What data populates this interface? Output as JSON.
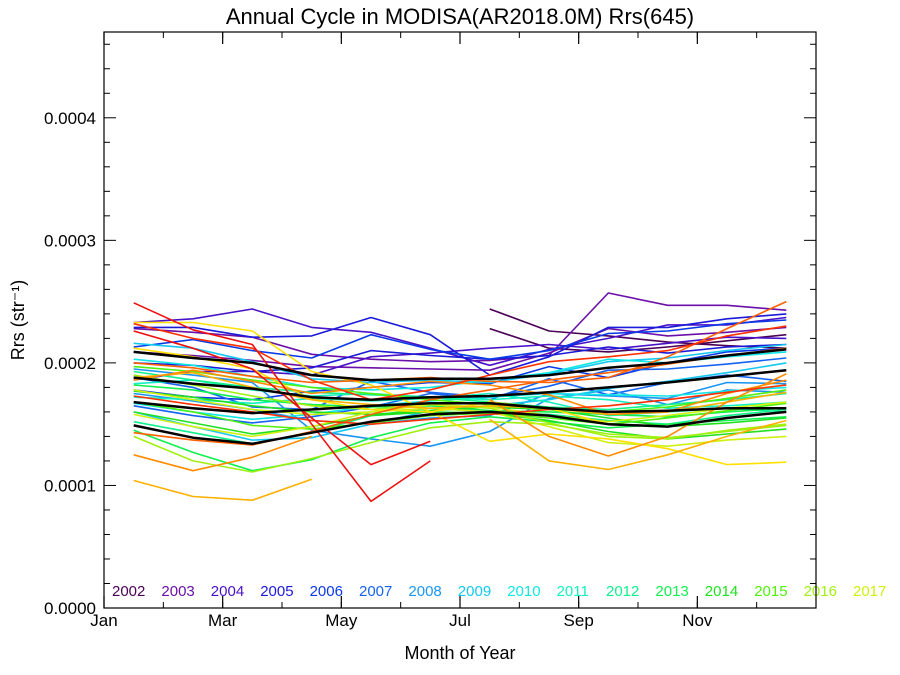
{
  "chart_data": {
    "type": "line",
    "title": "Annual Cycle in MODISA(AR2018.0M) Rrs(645)",
    "xlabel": "Month of Year",
    "ylabel": "Rrs (str⁻¹)",
    "xlim": [
      1,
      13
    ],
    "ylim": [
      0.0,
      0.00047
    ],
    "x_ticks": [
      {
        "value": 1,
        "label": "Jan"
      },
      {
        "value": 3,
        "label": "Mar"
      },
      {
        "value": 5,
        "label": "May"
      },
      {
        "value": 7,
        "label": "Jul"
      },
      {
        "value": 9,
        "label": "Sep"
      },
      {
        "value": 11,
        "label": "Nov"
      }
    ],
    "y_ticks": [
      {
        "value": 0.0,
        "label": "0.0000"
      },
      {
        "value": 0.0001,
        "label": "0.0001"
      },
      {
        "value": 0.0002,
        "label": "0.0002"
      },
      {
        "value": 0.0003,
        "label": "0.0003"
      },
      {
        "value": 0.0004,
        "label": "0.0004"
      }
    ],
    "months": [
      1.5,
      2.5,
      3.5,
      4.5,
      5.5,
      6.5,
      7.5,
      8.5,
      9.5,
      10.5,
      11.5,
      12.5
    ],
    "year_labels": [
      {
        "year": "2002",
        "color": "#4a0055"
      },
      {
        "year": "2003",
        "color": "#6a10a8"
      },
      {
        "year": "2004",
        "color": "#4a12c8"
      },
      {
        "year": "2005",
        "color": "#1a1ad8"
      },
      {
        "year": "2006",
        "color": "#0a3ae8"
      },
      {
        "year": "2007",
        "color": "#1464f0"
      },
      {
        "year": "2008",
        "color": "#1a96f0"
      },
      {
        "year": "2009",
        "color": "#14c8f0"
      },
      {
        "year": "2010",
        "color": "#10e6e6"
      },
      {
        "year": "2011",
        "color": "#14f0c0"
      },
      {
        "year": "2012",
        "color": "#10f08c"
      },
      {
        "year": "2013",
        "color": "#10f050"
      },
      {
        "year": "2014",
        "color": "#20e020"
      },
      {
        "year": "2015",
        "color": "#50f010"
      },
      {
        "year": "2016",
        "color": "#a0f010"
      },
      {
        "year": "2017",
        "color": "#d0f010"
      }
    ],
    "series": [
      {
        "color": "#4a0055",
        "values": [
          null,
          null,
          null,
          null,
          null,
          null,
          0.000244,
          0.000226,
          0.000222,
          0.000217,
          0.000214,
          0.000212
        ]
      },
      {
        "color": "#4a0055",
        "values": [
          null,
          null,
          null,
          null,
          null,
          null,
          0.000228,
          0.000212,
          0.000209,
          0.000213,
          0.000218,
          0.000223
        ]
      },
      {
        "color": "#6a10a8",
        "values": [
          0.000228,
          0.000225,
          0.000221,
          0.000207,
          0.000203,
          0.000201,
          0.000202,
          0.000206,
          0.000257,
          0.000247,
          0.000247,
          0.000243
        ]
      },
      {
        "color": "#6a10a8",
        "values": [
          0.000209,
          0.000206,
          0.000202,
          0.000197,
          0.000196,
          0.000195,
          0.000194,
          0.000208,
          0.000228,
          0.000222,
          0.000225,
          0.000229
        ]
      },
      {
        "color": "#4a12c8",
        "values": [
          0.000233,
          0.000236,
          0.000244,
          0.000229,
          0.000225,
          0.000212,
          0.000198,
          0.000211,
          0.00022,
          0.000231,
          0.000231,
          0.000237
        ]
      },
      {
        "color": "#4a12c8",
        "values": [
          0.000186,
          0.000193,
          0.000193,
          0.00019,
          0.000205,
          0.000208,
          0.000212,
          0.000215,
          0.000211,
          0.000216,
          0.000221,
          0.00022
        ]
      },
      {
        "color": "#1a1ad8",
        "values": [
          0.000229,
          0.000229,
          0.000221,
          0.000222,
          0.000237,
          0.000223,
          0.00019,
          0.000205,
          0.000229,
          0.000229,
          0.000236,
          0.00024
        ]
      },
      {
        "color": "#1a1ad8",
        "values": [
          0.0002,
          0.000198,
          0.000193,
          0.000196,
          0.00021,
          0.000206,
          0.000203,
          0.000206,
          0.000213,
          0.000208,
          0.000213,
          0.000215
        ]
      },
      {
        "color": "#0a3ae8",
        "values": [
          0.000213,
          0.000219,
          0.00021,
          0.000204,
          0.000223,
          0.000211,
          0.000203,
          0.00021,
          0.000224,
          0.000226,
          0.000232,
          0.000235
        ]
      },
      {
        "color": "#0a3ae8",
        "values": [
          0.000178,
          0.000172,
          0.00017,
          0.000177,
          0.00018,
          0.000184,
          0.000183,
          0.000197,
          0.000188,
          0.0002,
          0.000209,
          0.000212
        ]
      },
      {
        "color": "#1464f0",
        "values": [
          0.000188,
          0.00018,
          0.000164,
          0.000162,
          0.000185,
          0.000176,
          0.000172,
          0.000181,
          0.000194,
          0.000195,
          0.000199,
          0.000204
        ]
      },
      {
        "color": "#1464f0",
        "values": [
          0.000165,
          0.000157,
          0.000151,
          0.000156,
          0.000164,
          0.000175,
          0.00017,
          0.000187,
          0.000174,
          0.000184,
          0.00019,
          0.000185
        ]
      },
      {
        "color": "#1a96f0",
        "values": [
          0.000175,
          0.000169,
          0.000162,
          0.000153,
          0.00015,
          0.000155,
          0.000157,
          0.000175,
          0.000173,
          0.000171,
          0.000184,
          0.000183
        ]
      },
      {
        "color": "#1a96f0",
        "values": [
          0.000195,
          0.00019,
          0.000184,
          0.000145,
          0.000138,
          0.000132,
          0.000144,
          0.000171,
          0.000178,
          0.000166,
          0.000178,
          0.000176
        ]
      },
      {
        "color": "#14c8f0",
        "values": [
          0.000216,
          0.000212,
          0.000201,
          0.000187,
          0.000184,
          0.000186,
          0.000184,
          0.000191,
          0.000201,
          0.000204,
          0.00021,
          0.000215
        ]
      },
      {
        "color": "#14c8f0",
        "values": [
          0.00016,
          0.000148,
          0.000137,
          0.000139,
          0.00015,
          0.000161,
          0.000165,
          0.00017,
          0.000179,
          0.000185,
          0.000192,
          0.0002
        ]
      },
      {
        "color": "#10e6e6",
        "values": [
          0.000203,
          0.000198,
          0.000189,
          0.00018,
          0.000178,
          0.00018,
          0.000186,
          0.000192,
          0.000203,
          0.0002,
          0.000205,
          0.000209
        ]
      },
      {
        "color": "#10e6e6",
        "values": [
          0.000167,
          0.00016,
          0.000154,
          0.000158,
          0.000165,
          0.000169,
          0.000172,
          0.000175,
          0.000174,
          0.000173,
          0.000177,
          0.00018
        ]
      },
      {
        "color": "#14f0c0",
        "values": [
          0.000183,
          0.000186,
          0.000178,
          0.000173,
          0.000175,
          0.000172,
          0.00017,
          0.000173,
          0.00017,
          0.000163,
          0.000165,
          0.000168
        ]
      },
      {
        "color": "#14f0c0",
        "values": [
          0.000172,
          0.00017,
          0.000167,
          0.000171,
          0.000169,
          0.000171,
          0.000175,
          0.000168,
          0.000157,
          0.00016,
          0.000163,
          0.00016
        ]
      },
      {
        "color": "#10f08c",
        "values": [
          0.000193,
          0.000186,
          0.00018,
          0.000176,
          0.000174,
          0.000172,
          0.000168,
          0.000164,
          0.000162,
          0.000166,
          0.00017,
          0.000175
        ]
      },
      {
        "color": "#10f08c",
        "values": [
          0.000152,
          0.000143,
          0.000134,
          0.000143,
          0.000157,
          0.000163,
          0.00016,
          0.000158,
          0.000153,
          0.00015,
          0.000157,
          0.000162
        ]
      },
      {
        "color": "#10f050",
        "values": [
          0.000182,
          0.000178,
          0.00017,
          0.000166,
          0.000164,
          0.000165,
          0.000161,
          0.00016,
          0.000158,
          0.000156,
          0.00016,
          0.000163
        ]
      },
      {
        "color": "#10f050",
        "values": [
          0.000145,
          0.000127,
          0.000112,
          0.000121,
          0.000139,
          0.000151,
          0.000156,
          0.000152,
          0.000147,
          0.00015,
          0.000153,
          0.000156
        ]
      },
      {
        "color": "#20e020",
        "values": [
          0.000177,
          0.000172,
          0.000165,
          0.00016,
          0.000158,
          0.000161,
          0.000164,
          0.000162,
          0.000155,
          0.000148,
          0.000151,
          0.000155
        ]
      },
      {
        "color": "#20e020",
        "values": [
          0.00016,
          0.000151,
          0.000142,
          0.000148,
          0.000157,
          0.00016,
          0.000159,
          0.000153,
          0.000144,
          0.000138,
          0.000142,
          0.000146
        ]
      },
      {
        "color": "#50f010",
        "values": [
          0.000197,
          0.000193,
          0.000186,
          0.00018,
          0.000175,
          0.00017,
          0.000166,
          0.000162,
          0.00016,
          0.000164,
          0.000171,
          0.000178
        ]
      },
      {
        "color": "#50f010",
        "values": [
          0.000168,
          0.00016,
          0.000149,
          0.000146,
          0.000151,
          0.000157,
          0.000159,
          0.000155,
          0.00015,
          0.000155,
          0.000161,
          0.000167
        ]
      },
      {
        "color": "#a0f010",
        "values": [
          0.00019,
          0.000182,
          0.000173,
          0.000165,
          0.000162,
          0.000166,
          0.000163,
          0.000151,
          0.00014,
          0.000138,
          0.000145,
          0.00015
        ]
      },
      {
        "color": "#a0f010",
        "values": [
          0.00014,
          0.00012,
          0.000111,
          0.000122,
          0.000135,
          0.000147,
          0.000152,
          0.00015,
          0.000142,
          0.000139,
          0.000144,
          0.000149
        ]
      },
      {
        "color": "#d0f010",
        "values": [
          0.000178,
          0.00017,
          0.000162,
          0.000158,
          0.00016,
          0.000163,
          0.00016,
          0.000148,
          0.000135,
          0.000132,
          0.000137,
          0.00014
        ]
      },
      {
        "color": "#d0f010",
        "values": [
          0.000158,
          0.000148,
          0.00014,
          0.000148,
          0.00016,
          0.000166,
          0.000164,
          0.000157,
          0.000152,
          0.000157,
          0.000163,
          0.000168
        ]
      },
      {
        "color": "#ffe000",
        "values": [
          0.000233,
          0.000233,
          0.000226,
          0.000193,
          0.000182,
          0.00016,
          0.000136,
          0.000142,
          0.000138,
          0.00013,
          0.000117,
          0.000119
        ]
      },
      {
        "color": "#ffe000",
        "values": [
          0.000212,
          0.000205,
          0.000195,
          0.00017,
          0.000162,
          0.00016,
          0.000168,
          0.000163,
          0.00015,
          0.000148,
          0.000155,
          0.00016
        ]
      },
      {
        "color": "#ffb000",
        "values": [
          0.000104,
          9.1e-05,
          8.8e-05,
          0.000105,
          null,
          null,
          0.000154,
          0.00012,
          0.000113,
          0.000125,
          0.00014,
          0.000153
        ]
      },
      {
        "color": "#ffb000",
        "values": [
          0.000188,
          0.000192,
          0.00018,
          0.00017,
          0.000166,
          0.000163,
          0.000165,
          0.000163,
          0.000158,
          0.00016,
          0.000168,
          0.000176
        ]
      },
      {
        "color": "#ff8c00",
        "values": [
          0.000186,
          0.000194,
          0.000185,
          0.000175,
          0.00018,
          0.000185,
          0.000182,
          0.000174,
          0.000158,
          0.00016,
          0.000175,
          0.000186
        ]
      },
      {
        "color": "#ff8c00",
        "values": [
          0.000125,
          0.000112,
          0.000123,
          0.00014,
          null,
          null,
          0.00017,
          0.00014,
          0.000124,
          0.00014,
          0.000168,
          0.000191
        ]
      },
      {
        "color": "#ff6000",
        "values": [
          0.0002,
          0.000196,
          0.000189,
          0.000184,
          0.000186,
          0.000188,
          0.000185,
          0.000184,
          0.000188,
          0.000205,
          0.000228,
          0.00025
        ]
      },
      {
        "color": "#ff6000",
        "values": [
          0.000143,
          0.000137,
          0.000133,
          0.000144,
          0.000158,
          0.00017,
          0.000178,
          0.000186,
          0.000192,
          0.000199,
          0.000206,
          0.000212
        ]
      },
      {
        "color": "#ff3000",
        "values": [
          0.000232,
          0.00022,
          0.000212,
          0.000186,
          0.00017,
          0.000178,
          0.00019,
          0.000201,
          0.000205,
          0.00021,
          0.000222,
          0.00023
        ]
      },
      {
        "color": "#ff3000",
        "values": [
          0.000173,
          0.000166,
          0.00016,
          0.000153,
          0.00015,
          0.000154,
          0.000158,
          0.000162,
          0.000165,
          0.00017,
          0.000176,
          0.000182
        ]
      },
      {
        "color": "#ee1010",
        "values": [
          0.000249,
          0.000227,
          0.000215,
          0.00015,
          8.7e-05,
          0.00012,
          null,
          null,
          null,
          null,
          null,
          null
        ]
      },
      {
        "color": "#ee1010",
        "values": [
          0.000226,
          0.000212,
          0.000195,
          0.000155,
          0.000117,
          0.000136,
          null,
          null,
          null,
          null,
          null,
          null
        ]
      },
      {
        "color": "#000000",
        "width": 2.5,
        "values": [
          0.000209,
          0.000204,
          0.0002,
          0.00019,
          0.000186,
          0.000187,
          0.000187,
          0.00019,
          0.000196,
          0.0002,
          0.000206,
          0.000211
        ]
      },
      {
        "color": "#000000",
        "width": 2.5,
        "values": [
          0.000188,
          0.000183,
          0.000179,
          0.000172,
          0.00017,
          0.000172,
          0.000173,
          0.000176,
          0.00018,
          0.000184,
          0.000189,
          0.000194
        ]
      },
      {
        "color": "#000000",
        "width": 2.5,
        "values": [
          0.000168,
          0.000163,
          0.000159,
          0.000162,
          0.000165,
          0.000167,
          0.000167,
          0.000163,
          0.00016,
          0.000161,
          0.000163,
          0.000163
        ]
      },
      {
        "color": "#000000",
        "width": 2.5,
        "values": [
          0.000149,
          0.000139,
          0.000134,
          0.000143,
          0.000152,
          0.000158,
          0.00016,
          0.000157,
          0.00015,
          0.000148,
          0.000155,
          0.00016
        ]
      }
    ]
  }
}
